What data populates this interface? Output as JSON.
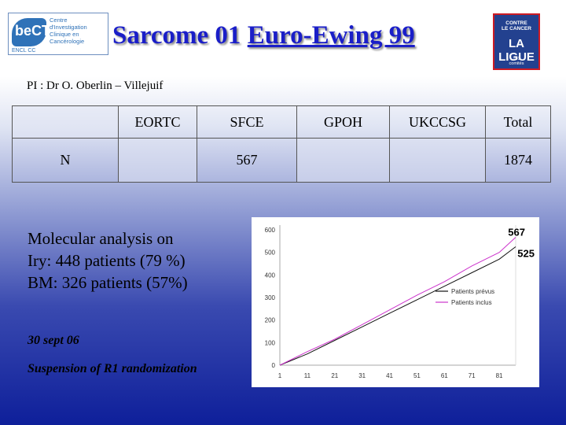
{
  "header": {
    "title_prefix": "Sarcome 01 ",
    "title_underlined": "Euro-Ewing 99",
    "pi": "PI : Dr O. Oberlin – Villejuif"
  },
  "logo_left": {
    "mark": "beCT",
    "subtitle": "ENCL CC",
    "lines": [
      "Centre",
      "d'Investigation",
      "Clinique en",
      "Cancérologie"
    ]
  },
  "logo_right": {
    "top_lines": [
      "CONTRE",
      "LE CANCER"
    ],
    "main": "LA LIGUE",
    "bottom_lines": [
      "101",
      "comités"
    ],
    "colors": {
      "background": "#23418f",
      "border": "#cc1b24"
    }
  },
  "table": {
    "headers": [
      "",
      "EORTC",
      "SFCE",
      "GPOH",
      "UKCCSG",
      "Total"
    ],
    "row": [
      "N",
      "",
      "567",
      "",
      "",
      "1874"
    ]
  },
  "molecular": {
    "lines": [
      "Molecular analysis on",
      "Iry: 448 patients (79 %)",
      "BM: 326 patients (57%)"
    ]
  },
  "notes": {
    "date": "30 sept 06",
    "event": "Suspension of R1 randomization"
  },
  "chart_data": {
    "type": "line",
    "xlim": [
      1,
      87
    ],
    "ylim": [
      0,
      600
    ],
    "xticks": [
      1,
      11,
      21,
      31,
      41,
      51,
      61,
      71,
      81
    ],
    "yticks": [
      0,
      100,
      200,
      300,
      400,
      500,
      600
    ],
    "grid": false,
    "legend_position": "right",
    "series": [
      {
        "name": "Patients prévus",
        "color": "#111111",
        "points": [
          [
            1,
            0
          ],
          [
            11,
            50
          ],
          [
            21,
            110
          ],
          [
            31,
            170
          ],
          [
            41,
            230
          ],
          [
            51,
            290
          ],
          [
            61,
            350
          ],
          [
            71,
            410
          ],
          [
            81,
            470
          ],
          [
            87,
            525
          ]
        ]
      },
      {
        "name": "Patients inclus",
        "color": "#cc33cc",
        "points": [
          [
            1,
            0
          ],
          [
            11,
            60
          ],
          [
            21,
            115
          ],
          [
            31,
            180
          ],
          [
            41,
            245
          ],
          [
            51,
            310
          ],
          [
            61,
            370
          ],
          [
            71,
            440
          ],
          [
            81,
            500
          ],
          [
            87,
            567
          ]
        ]
      }
    ],
    "annotations": [
      "567",
      "525"
    ]
  }
}
